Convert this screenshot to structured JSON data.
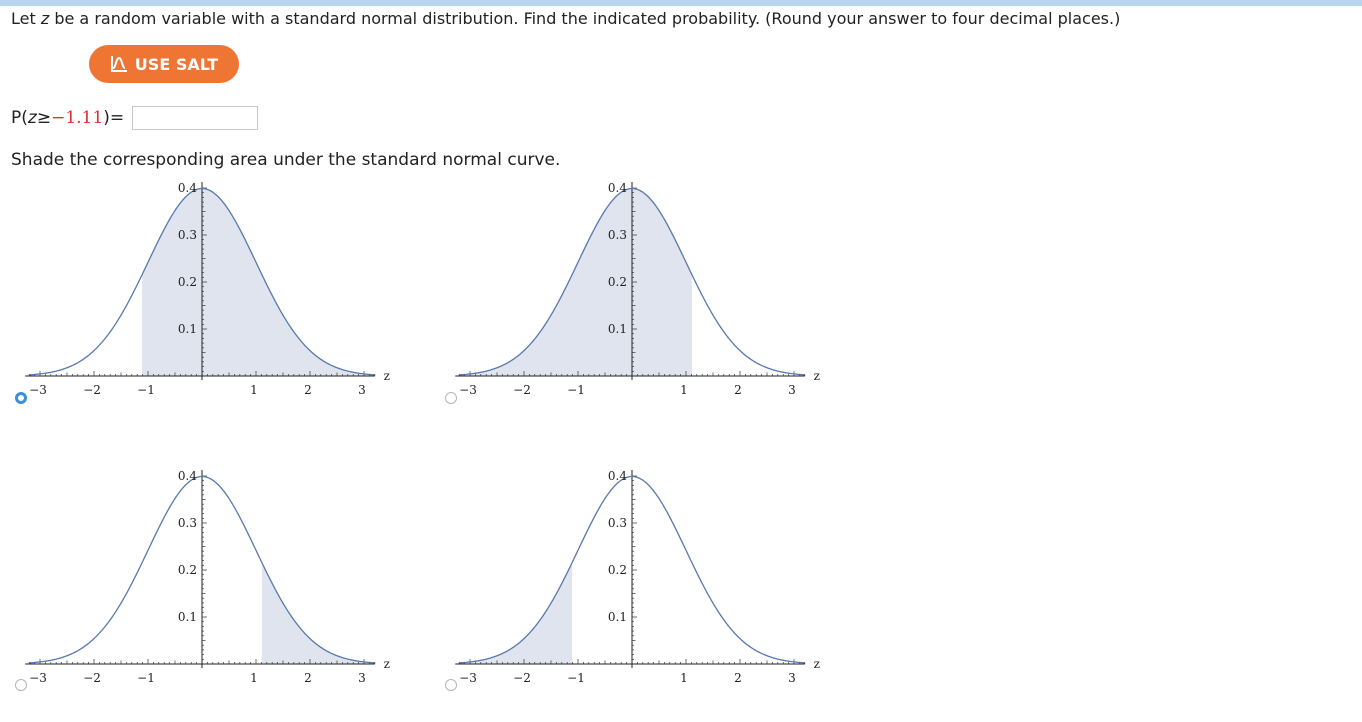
{
  "question": {
    "prefix": "Let ",
    "var": "z",
    "suffix": " be a random variable with a standard normal distribution. Find the indicated probability. (Round your answer to four decimal places.)"
  },
  "salt_button": {
    "label": "USE SALT",
    "icon": "salt-graph-icon",
    "color": "#ee7534"
  },
  "probability": {
    "p_open": "P(",
    "var": "z",
    "op": " ≥ ",
    "value": "−1.11",
    "p_close": ")",
    "equals": " =",
    "answer_value": "",
    "value_color": "#d9302a"
  },
  "instruction": "Shade the corresponding area under the standard normal curve.",
  "curve_color": "#5879ad",
  "shade_color": "#dfe4ee",
  "chart_data": [
    {
      "type": "area",
      "option": "A",
      "selected": true,
      "shade": {
        "from": -1.11,
        "to": 3.2
      },
      "xlabel": "z",
      "xlim": [
        -3.2,
        3.2
      ],
      "ylim": [
        0,
        0.4
      ],
      "x_ticks": [
        "−3",
        "−2",
        "−1",
        "1",
        "2",
        "3"
      ],
      "y_ticks": [
        "0.1",
        "0.2",
        "0.3",
        "0.4"
      ]
    },
    {
      "type": "area",
      "option": "B",
      "selected": false,
      "shade": {
        "from": -3.2,
        "to": 1.11
      },
      "xlabel": "z",
      "xlim": [
        -3.2,
        3.2
      ],
      "ylim": [
        0,
        0.4
      ],
      "x_ticks": [
        "−3",
        "−2",
        "−1",
        "1",
        "2",
        "3"
      ],
      "y_ticks": [
        "0.1",
        "0.2",
        "0.3",
        "0.4"
      ]
    },
    {
      "type": "area",
      "option": "C",
      "selected": false,
      "shade": {
        "from": 1.11,
        "to": 3.2
      },
      "xlabel": "z",
      "xlim": [
        -3.2,
        3.2
      ],
      "ylim": [
        0,
        0.4
      ],
      "x_ticks": [
        "−3",
        "−2",
        "−1",
        "1",
        "2",
        "3"
      ],
      "y_ticks": [
        "0.1",
        "0.2",
        "0.3",
        "0.4"
      ]
    },
    {
      "type": "area",
      "option": "D",
      "selected": false,
      "shade": {
        "from": -3.2,
        "to": -1.11
      },
      "xlabel": "z",
      "xlim": [
        -3.2,
        3.2
      ],
      "ylim": [
        0,
        0.4
      ],
      "x_ticks": [
        "−3",
        "−2",
        "−1",
        "1",
        "2",
        "3"
      ],
      "y_ticks": [
        "0.1",
        "0.2",
        "0.3",
        "0.4"
      ]
    }
  ]
}
